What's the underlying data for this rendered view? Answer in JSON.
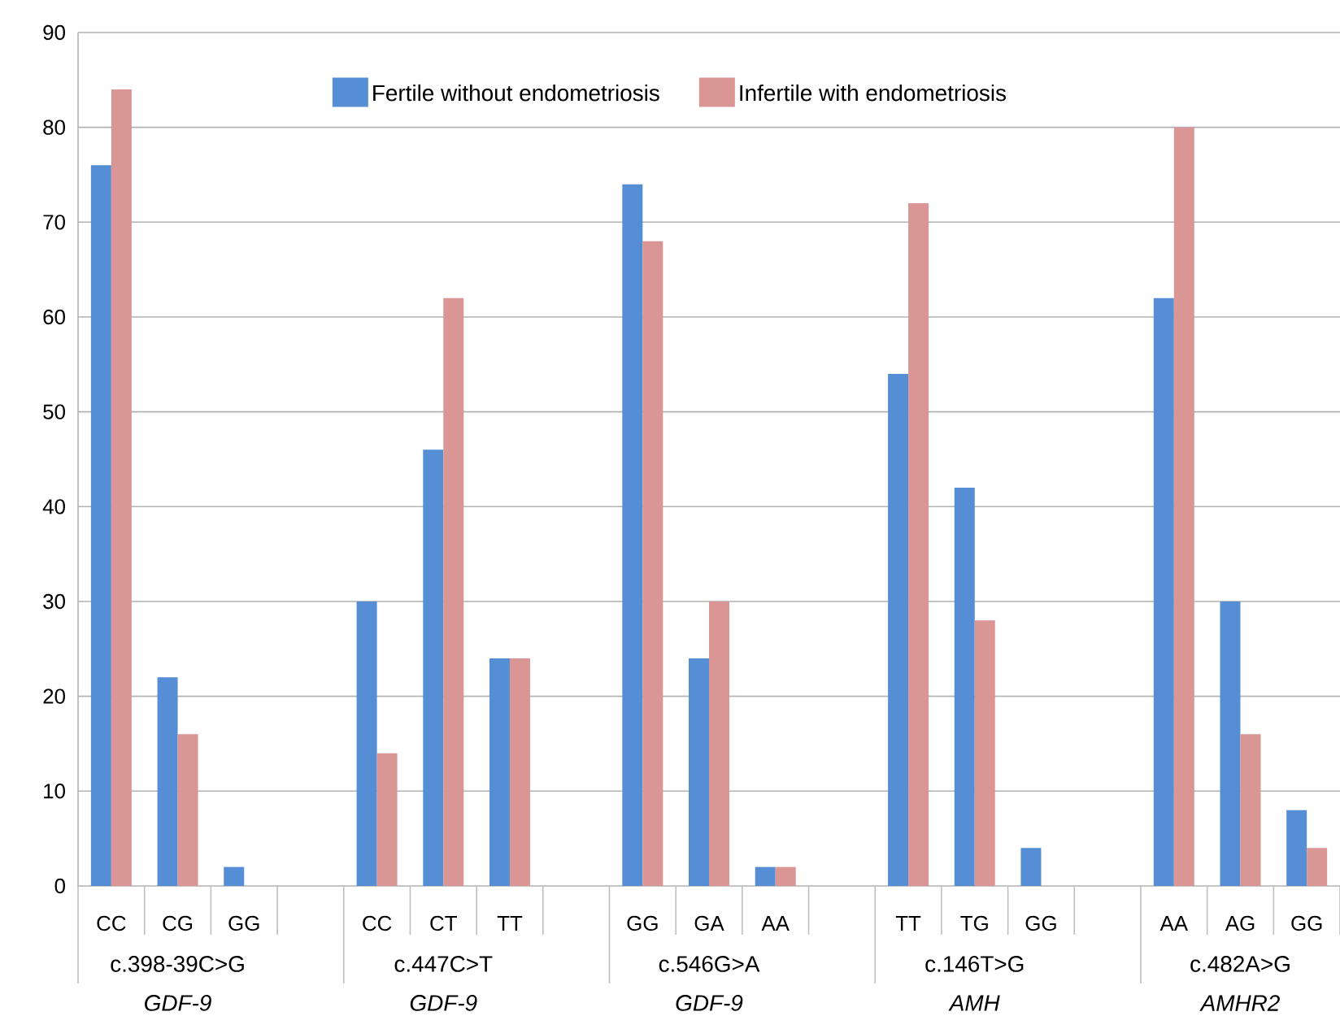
{
  "chart_data": {
    "type": "bar",
    "categories": [
      "CC",
      "CG",
      "GG",
      null,
      "CC",
      "CT",
      "TT",
      null,
      "GG",
      "GA",
      "AA",
      null,
      "TT",
      "TG",
      "GG",
      null,
      "AA",
      "AG",
      "GG"
    ],
    "series": [
      {
        "name": "Fertile without endometriosis",
        "color": "#558ed5",
        "values": [
          76,
          22,
          2,
          null,
          30,
          46,
          24,
          null,
          74,
          24,
          2,
          null,
          54,
          42,
          4,
          null,
          62,
          30,
          8
        ]
      },
      {
        "name": "Infertile with endometriosis",
        "color": "#d99694",
        "values": [
          84,
          16,
          0,
          null,
          14,
          62,
          24,
          null,
          68,
          30,
          2,
          null,
          72,
          28,
          0,
          null,
          80,
          16,
          4
        ]
      }
    ],
    "ylim": [
      0,
      90
    ],
    "yticks": [
      0,
      10,
      20,
      30,
      40,
      50,
      60,
      70,
      80,
      90
    ],
    "grid": "y",
    "legend": "top",
    "annotations": [
      "c.398-39C>G",
      "GDF-9",
      "c.447C>T",
      "GDF-9",
      "c.546G>A",
      "GDF-9",
      "c.146T>G",
      "AMH",
      "c.482A>G",
      "AMHR2"
    ]
  }
}
